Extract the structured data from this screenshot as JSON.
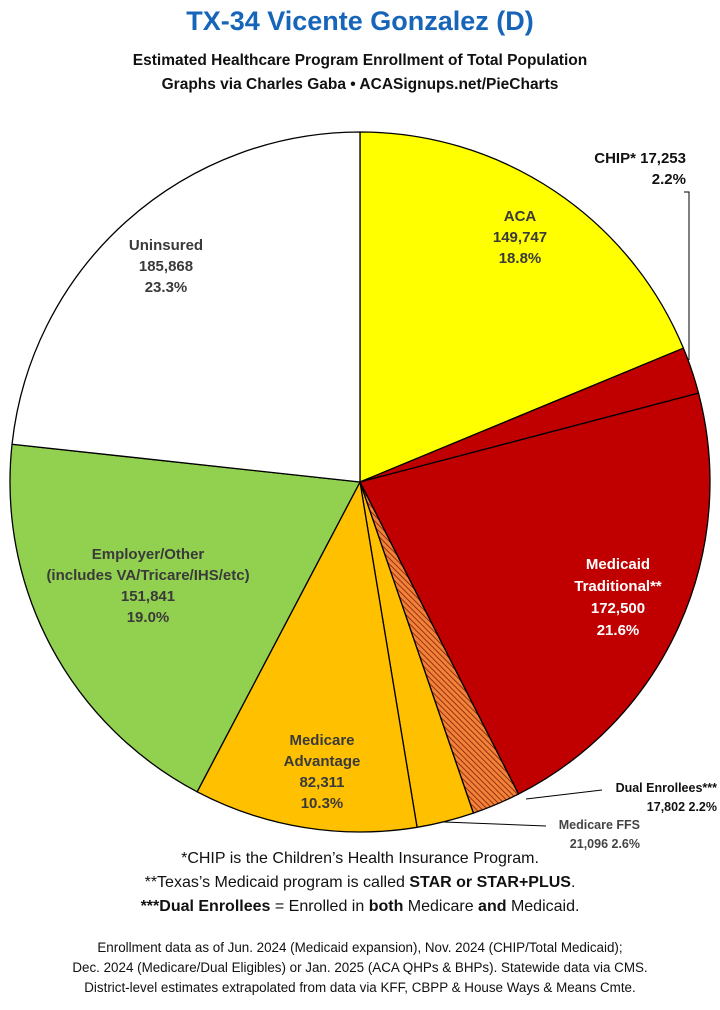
{
  "header": {
    "title": "TX-34 Vicente Gonzalez (D)",
    "subtitle_line1": "Estimated Healthcare Program Enrollment of Total Population",
    "subtitle_line2": "Graphs via Charles Gaba  •  ACASignups.net/PieCharts"
  },
  "chart_data": {
    "type": "pie",
    "start_angle_deg": 0,
    "direction": "clockwise",
    "slices": [
      {
        "name": "ACA",
        "value": 149747,
        "percent": "18.8%",
        "value_label": "149,747",
        "color": "#ffff00",
        "text_color": "#3a3a3a",
        "pattern": false
      },
      {
        "name": "CHIP*",
        "value": 17253,
        "percent": "2.2%",
        "value_label": "17,253",
        "color": "#c00000",
        "text_color": "#111111",
        "pattern": false
      },
      {
        "name": "Medicaid Traditional**",
        "value": 172500,
        "percent": "21.6%",
        "value_label": "172,500",
        "color": "#c00000",
        "text_color": "#ffffff",
        "pattern": false
      },
      {
        "name": "Dual Enrollees***",
        "value": 17802,
        "percent": "2.2%",
        "value_label": "17,802",
        "color": "#f0833a",
        "text_color": "#111111",
        "pattern": true
      },
      {
        "name": "Medicare FFS",
        "value": 21096,
        "percent": "2.6%",
        "value_label": "21,096",
        "color": "#ffc000",
        "text_color": "#444444",
        "pattern": false
      },
      {
        "name": "Medicare Advantage",
        "value": 82311,
        "percent": "10.3%",
        "value_label": "82,311",
        "color": "#ffc000",
        "text_color": "#3a3a3a",
        "pattern": false
      },
      {
        "name": "Employer/Other (includes VA/Tricare/IHS/etc)",
        "value": 151841,
        "percent": "19.0%",
        "value_label": "151,841",
        "color": "#92d050",
        "text_color": "#3a3a3a",
        "pattern": false
      },
      {
        "name": "Uninsured",
        "value": 185868,
        "percent": "23.3%",
        "value_label": "185,868",
        "color": "#ffffff",
        "text_color": "#3a3a3a",
        "pattern": false
      }
    ],
    "labels": {
      "aca": [
        "ACA",
        "149,747",
        "18.8%"
      ],
      "chip": [
        "CHIP* 17,253",
        "2.2%"
      ],
      "medicaid": [
        "Medicaid",
        "Traditional**",
        "172,500",
        "21.6%"
      ],
      "dual": [
        "Dual Enrollees***",
        "17,802 2.2%"
      ],
      "ffs": [
        "Medicare FFS",
        "21,096 2.6%"
      ],
      "ma": [
        "Medicare",
        "Advantage",
        "82,311",
        "10.3%"
      ],
      "employer": [
        "Employer/Other",
        "(includes VA/Tricare/IHS/etc)",
        "151,841",
        "19.0%"
      ],
      "uninsured": [
        "Uninsured",
        "185,868",
        "23.3%"
      ]
    }
  },
  "notes": {
    "chip_note": "*CHIP is the Children’s Health Insurance Program.",
    "medicaid_note_prefix": "**Texas’s Medicaid program is called ",
    "medicaid_note_bold": "STAR or STAR+PLUS",
    "medicaid_note_suffix": ".",
    "dual_note_bold": "***Dual Enrollees",
    "dual_note_mid1": " = Enrolled in ",
    "dual_note_both": "both",
    "dual_note_mid2": " Medicare ",
    "dual_note_and": "and",
    "dual_note_end": " Medicaid."
  },
  "footer": {
    "line1": "Enrollment data as of Jun. 2024 (Medicaid expansion), Nov. 2024 (CHIP/Total Medicaid);",
    "line2": "Dec. 2024 (Medicare/Dual Eligibles) or Jan. 2025 (ACA QHPs & BHPs). Statewide data via CMS.",
    "line3": "District-level estimates extrapolated from data via KFF, CBPP & House Ways & Means Cmte."
  }
}
